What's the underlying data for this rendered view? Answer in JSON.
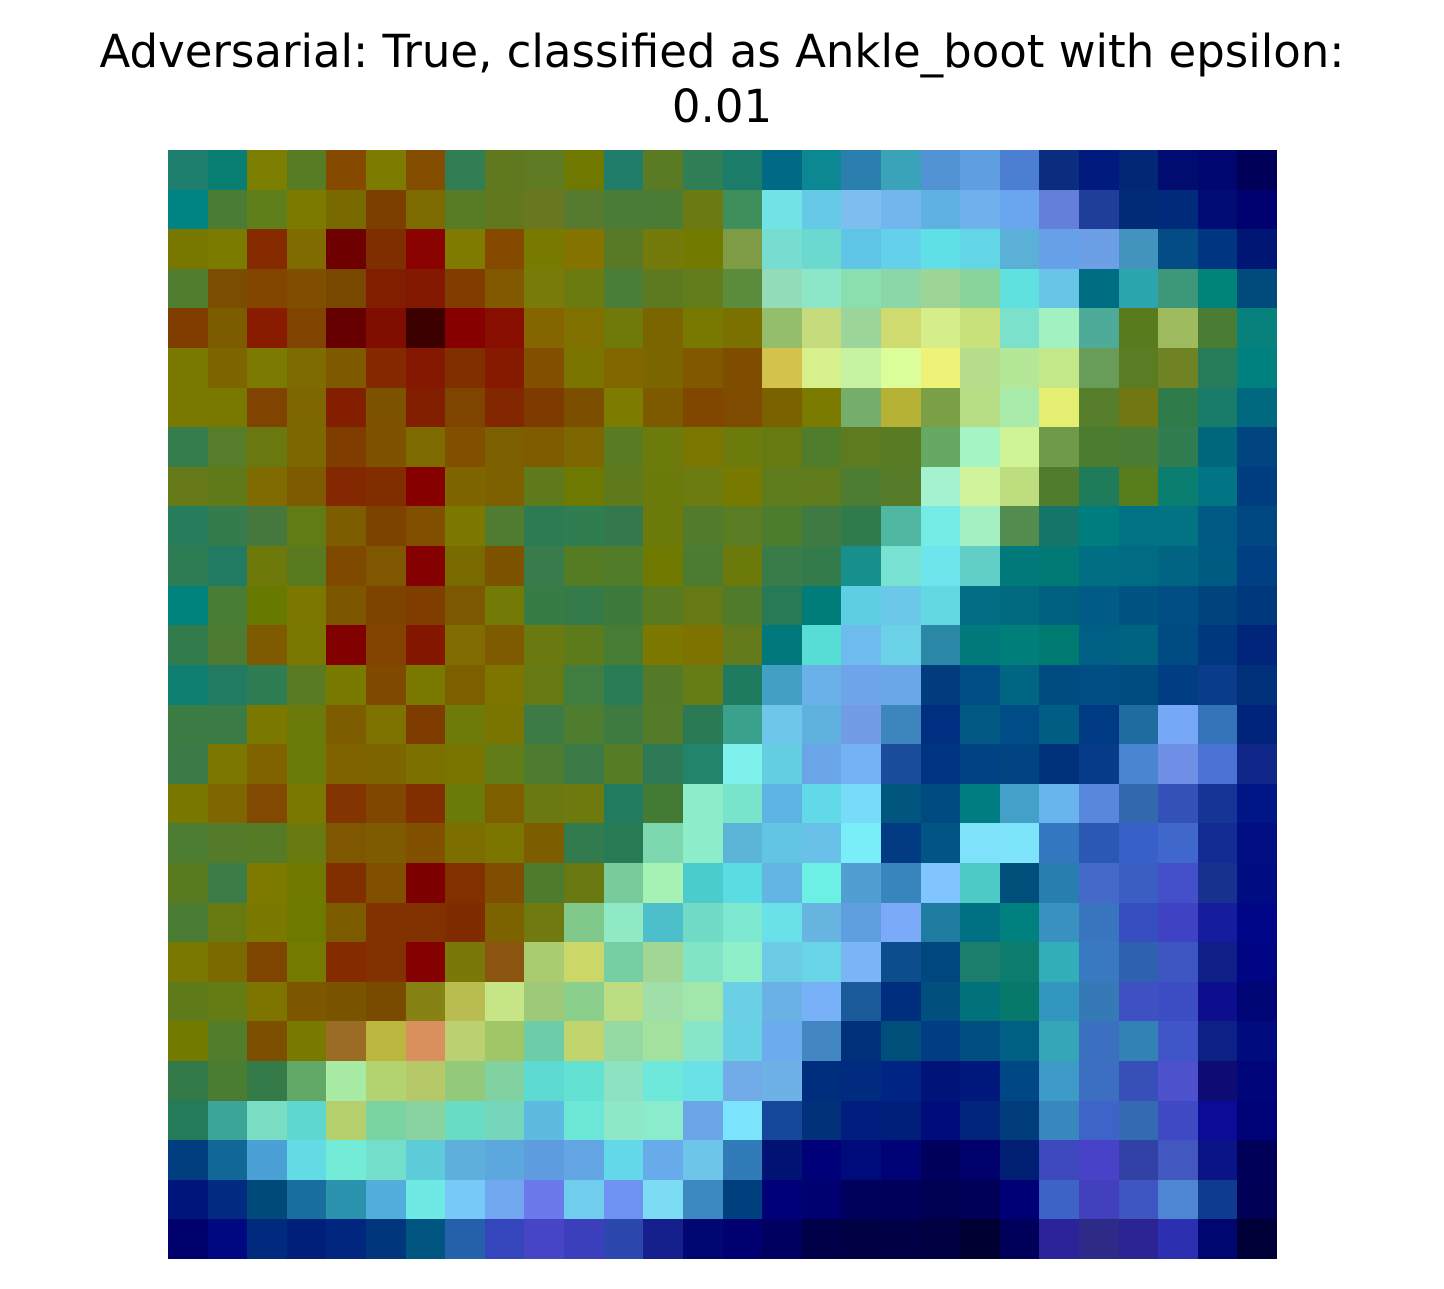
{
  "title": {
    "line1": "Adversarial: True, classified as Ankle_boot with epsilon:",
    "line2": "0.01"
  },
  "heatmap": {
    "rows": 28,
    "cols": 28,
    "color_rows": [
      [
        "#1e7f6e",
        "#087f72",
        "#7b7e00",
        "#577c24",
        "#854a00",
        "#7d7c00",
        "#854d00",
        "#327e54",
        "#61791e",
        "#5e7a22",
        "#6f7900",
        "#207d69",
        "#5a7b24",
        "#2f7e56",
        "#1c7c6a",
        "#006985",
        "#0b8891",
        "#2b7fae",
        "#3aa3b9",
        "#5193d3",
        "#609ee2",
        "#4c7fd2",
        "#0a2d7f",
        "#001b7d",
        "#012776",
        "#000c6f",
        "#000870",
        "#000058"
      ],
      [
        "#008483",
        "#4a7d33",
        "#5e7f19",
        "#7d7a00",
        "#796a00",
        "#7c3f00",
        "#7b6b00",
        "#587b26",
        "#61781e",
        "#687720",
        "#557a30",
        "#4a7c38",
        "#4b7c35",
        "#6d7a14",
        "#3e8f5c",
        "#72e3e4",
        "#66cae6",
        "#7dbdef",
        "#72b6ed",
        "#5eb1e1",
        "#6fb0ed",
        "#6aa5f0",
        "#637fda",
        "#1e3e99",
        "#002c77",
        "#002a7a",
        "#010b74",
        "#000070"
      ],
      [
        "#787700",
        "#7b7b00",
        "#862b00",
        "#7f6b00",
        "#6e0100",
        "#7f2e00",
        "#8a0200",
        "#7e7b00",
        "#864900",
        "#797b00",
        "#857400",
        "#5a7927",
        "#757b0a",
        "#727a00",
        "#7e9c45",
        "#76ddd0",
        "#6cd9d0",
        "#5ec5e7",
        "#64d0ec",
        "#5fe0e7",
        "#63d6e6",
        "#5ab0d6",
        "#66a0e8",
        "#6c9fe6",
        "#4393bf",
        "#034c85",
        "#003582",
        "#001675"
      ],
      [
        "#4f7e30",
        "#7a4d00",
        "#834600",
        "#7f4e00",
        "#784700",
        "#811d00",
        "#821900",
        "#823c00",
        "#815900",
        "#787b09",
        "#6c7b10",
        "#497d38",
        "#5e7a21",
        "#627d1b",
        "#5a8c3b",
        "#92dcb8",
        "#8ee6c9",
        "#89dfb0",
        "#8cd7a7",
        "#9ed495",
        "#89d499",
        "#61e0e0",
        "#68c5e7",
        "#006e82",
        "#2ba6ae",
        "#3d9779",
        "#018379",
        "#004a7c"
      ],
      [
        "#803d00",
        "#7d5c00",
        "#881b00",
        "#814300",
        "#660000",
        "#800e00",
        "#3d0000",
        "#860000",
        "#880e00",
        "#846500",
        "#807000",
        "#707a0b",
        "#7b6500",
        "#787900",
        "#7b7100",
        "#94be6c",
        "#c5db7c",
        "#9bd599",
        "#cfdb6e",
        "#d6ed8b",
        "#c9e17b",
        "#7ce1cb",
        "#a1f2c0",
        "#4eab99",
        "#5a7b1d",
        "#9fbb60",
        "#4b7c33",
        "#06817c"
      ],
      [
        "#7a7900",
        "#7f6500",
        "#7c7a00",
        "#7f6c00",
        "#7f5900",
        "#852a00",
        "#841800",
        "#822f00",
        "#861a00",
        "#825000",
        "#7b7500",
        "#826700",
        "#7b6600",
        "#805800",
        "#7e4d00",
        "#d3c24c",
        "#d8f08b",
        "#c6f3a2",
        "#dbfe9a",
        "#eef276",
        "#b5dd8a",
        "#b4e798",
        "#c3e88a",
        "#689c58",
        "#5a7c22",
        "#6f8324",
        "#277c59",
        "#00807e"
      ],
      [
        "#797900",
        "#797800",
        "#814400",
        "#7e6700",
        "#831e00",
        "#7e5300",
        "#821e00",
        "#7e4400",
        "#832700",
        "#7e3b00",
        "#7c4e00",
        "#7d7b00",
        "#7d5900",
        "#814600",
        "#7e4b00",
        "#7a6200",
        "#7b7b00",
        "#74ad6c",
        "#b5b236",
        "#7b9f44",
        "#b7dd84",
        "#a8ebaa",
        "#e4ee71",
        "#577e2b",
        "#717811",
        "#307b4a",
        "#197c6a",
        "#00687f"
      ],
      [
        "#357d4c",
        "#567d29",
        "#6b7810",
        "#7c6700",
        "#7f3d00",
        "#7f5200",
        "#7d6b00",
        "#804f00",
        "#7c5f00",
        "#7f5c00",
        "#7e6700",
        "#5b7b23",
        "#6c7b0b",
        "#7b7700",
        "#6d7b0d",
        "#657b12",
        "#507d2c",
        "#5e7b20",
        "#597b23",
        "#66a963",
        "#a5f4c4",
        "#cff397",
        "#6e9a4a",
        "#4b7c30",
        "#4a7c33",
        "#2f7d50",
        "#00677d",
        "#004580"
      ],
      [
        "#657918",
        "#607919",
        "#7f6b00",
        "#7e5b00",
        "#832800",
        "#812d00",
        "#860000",
        "#7f6500",
        "#7d6000",
        "#5e7a1d",
        "#6d7900",
        "#5e7a1c",
        "#6b7a0b",
        "#6d7c10",
        "#797a00",
        "#5e7c1c",
        "#5f7b1c",
        "#4c7d33",
        "#567b29",
        "#a4f2cf",
        "#d0f39b",
        "#bedd7f",
        "#4f7c2d",
        "#1e7c5a",
        "#577d1c",
        "#0a7e70",
        "#017583",
        "#003c80"
      ],
      [
        "#277c5b",
        "#357b4c",
        "#46783d",
        "#627c15",
        "#7e5c00",
        "#7e4200",
        "#805000",
        "#7c7800",
        "#4f7c31",
        "#2c7b53",
        "#307d52",
        "#35784d",
        "#6c7a0c",
        "#527c2c",
        "#5a7c22",
        "#4c7c2e",
        "#3e7a41",
        "#2f7b4b",
        "#50b8a2",
        "#75ebe5",
        "#a5f0c2",
        "#538c4f",
        "#157569",
        "#007d7e",
        "#017283",
        "#017383",
        "#005a83",
        "#004882"
      ],
      [
        "#2e7c53",
        "#217a62",
        "#6d7a0b",
        "#597a1f",
        "#7f4a00",
        "#7f5700",
        "#850000",
        "#7a6b00",
        "#7e5300",
        "#397b4a",
        "#567c23",
        "#517c2a",
        "#717a00",
        "#4c7b32",
        "#6b7a0b",
        "#397c4a",
        "#337b4b",
        "#17908d",
        "#79e2d2",
        "#6ee5ec",
        "#61cfc6",
        "#007a7a",
        "#017a75",
        "#006e83",
        "#016b83",
        "#006482",
        "#005b82",
        "#003f83"
      ],
      [
        "#00837d",
        "#487d35",
        "#687900",
        "#7c7700",
        "#7d5600",
        "#7f4300",
        "#7f3e00",
        "#7c5800",
        "#737b06",
        "#377b45",
        "#347b49",
        "#3e7a3e",
        "#587b21",
        "#657a14",
        "#507b2b",
        "#287a56",
        "#007d79",
        "#5ecee2",
        "#6cc8e8",
        "#63d7e2",
        "#036d85",
        "#016a81",
        "#00617f",
        "#005b86",
        "#005481",
        "#004e84",
        "#00447e",
        "#00387e"
      ],
      [
        "#327b4d",
        "#4d7b31",
        "#7e5a00",
        "#7b7800",
        "#800000",
        "#824300",
        "#841700",
        "#806c00",
        "#7e5a00",
        "#6b7a10",
        "#5e7b1b",
        "#477c35",
        "#7d7900",
        "#7e7200",
        "#627a19",
        "#01787b",
        "#57dcd6",
        "#6ebcee",
        "#6ad1e6",
        "#2a88a6",
        "#017a7c",
        "#007e7a",
        "#007b72",
        "#005f84",
        "#006380",
        "#004b81",
        "#00387f",
        "#00257a"
      ],
      [
        "#0f7f71",
        "#237a62",
        "#2f7d53",
        "#5a7b22",
        "#797a00",
        "#7f4900",
        "#797800",
        "#7d5f00",
        "#7e7400",
        "#657a13",
        "#3f7d40",
        "#287c56",
        "#557a27",
        "#667c15",
        "#1e7b5f",
        "#41a0c3",
        "#6ab1ea",
        "#6ea5ea",
        "#6aa7e8",
        "#013c7e",
        "#004c84",
        "#006682",
        "#004b80",
        "#004e84",
        "#004c80",
        "#003d82",
        "#0b3c8b",
        "#00307a"
      ],
      [
        "#3b7c45",
        "#3b7b46",
        "#7b7900",
        "#6c7a0b",
        "#7e5d00",
        "#7e7200",
        "#7f3c00",
        "#6e7b08",
        "#7a7500",
        "#3c7b46",
        "#4e7d30",
        "#3d7b41",
        "#537b2a",
        "#2a7a56",
        "#3aa18d",
        "#6ec6ea",
        "#5fb2dd",
        "#739ce6",
        "#3c86bd",
        "#002f81",
        "#005883",
        "#004c86",
        "#005d84",
        "#003a84",
        "#1e6ca0",
        "#77a8f8",
        "#3573b8",
        "#00237b"
      ],
      [
        "#3c7b47",
        "#7b7700",
        "#816400",
        "#6c790b",
        "#7e6300",
        "#7d6500",
        "#7c7000",
        "#7a7500",
        "#627c17",
        "#4d7c31",
        "#3a7b48",
        "#567c25",
        "#2e7a56",
        "#23846c",
        "#7ff2ed",
        "#63cde2",
        "#69a5e7",
        "#75b1f5",
        "#1b4c9b",
        "#003382",
        "#004385",
        "#004582",
        "#00317c",
        "#073c8a",
        "#4985d1",
        "#6f8fe7",
        "#4b72d5",
        "#0f2587"
      ],
      [
        "#7a7700",
        "#7e6600",
        "#824a00",
        "#7b7800",
        "#823500",
        "#814600",
        "#822e00",
        "#6c7a0a",
        "#7f5e00",
        "#6b7a10",
        "#6e790e",
        "#227b5e",
        "#437b35",
        "#8ceec9",
        "#79e4cc",
        "#5db4e3",
        "#62d9e6",
        "#78dcf9",
        "#015680",
        "#004a82",
        "#007c83",
        "#43a0c8",
        "#69b4ed",
        "#5887db",
        "#3268ae",
        "#3450b9",
        "#143596",
        "#001686"
      ],
      [
        "#4d7d32",
        "#537b2a",
        "#557b27",
        "#697a10",
        "#7e5700",
        "#7e5b00",
        "#825100",
        "#7d6e00",
        "#7b7600",
        "#7c5e00",
        "#327b4e",
        "#267b55",
        "#7dd8b0",
        "#8ceec8",
        "#5cb5d6",
        "#62c5e3",
        "#69c0e8",
        "#79edf8",
        "#023b83",
        "#005584",
        "#7fe2fb",
        "#7de4fa",
        "#3478c1",
        "#2a58b2",
        "#3860c9",
        "#4067cc",
        "#142b96",
        "#000e82"
      ],
      [
        "#597a1f",
        "#3b7c47",
        "#7e7a00",
        "#707900",
        "#812e00",
        "#804f00",
        "#7c0000",
        "#823000",
        "#804e00",
        "#4e7c2f",
        "#697810",
        "#7acb9c",
        "#a5f2b4",
        "#4ccbcd",
        "#5bdbe2",
        "#63b5e3",
        "#6bf0e3",
        "#519fd0",
        "#3884bc",
        "#81c5fe",
        "#4ecac6",
        "#004e7a",
        "#287eae",
        "#4469c9",
        "#3a5ec4",
        "#4350c9",
        "#17318e",
        "#000d82"
      ],
      [
        "#4b7c33",
        "#677a12",
        "#7b7900",
        "#6e7900",
        "#7d5c00",
        "#813200",
        "#813000",
        "#802b00",
        "#7d6200",
        "#707a11",
        "#80c98a",
        "#8fe9c4",
        "#4dbfcb",
        "#71dbc8",
        "#7ee8d1",
        "#6ae1e8",
        "#68b5e2",
        "#5f9fe0",
        "#7baaf9",
        "#1e7ca0",
        "#007083",
        "#008180",
        "#3991bf",
        "#3a76bf",
        "#364ec0",
        "#4042c4",
        "#161c9e",
        "#000688"
      ],
      [
        "#7a7800",
        "#7b6a00",
        "#7d4500",
        "#757a00",
        "#842b00",
        "#823100",
        "#850000",
        "#7a7807",
        "#8c5411",
        "#aacb70",
        "#cbd769",
        "#76cfa3",
        "#a2d695",
        "#81e4c7",
        "#8fefc9",
        "#6ccbe5",
        "#69d5e6",
        "#7ab6f5",
        "#0c4d8b",
        "#00477f",
        "#1c7e6c",
        "#0b7c6e",
        "#31aeb8",
        "#3879c1",
        "#2f61b1",
        "#3e56c2",
        "#0e2087",
        "#000584"
      ],
      [
        "#5f7a19",
        "#657b13",
        "#7e7400",
        "#7c5700",
        "#7b5400",
        "#794b00",
        "#868213",
        "#b9bc51",
        "#c6e587",
        "#9ec979",
        "#8bcf8c",
        "#bcdd81",
        "#a0dfa7",
        "#a1e6ab",
        "#6bd0e6",
        "#6ab2e6",
        "#79b1f8",
        "#1c5b99",
        "#002e7e",
        "#004f7c",
        "#01717b",
        "#07796b",
        "#3396be",
        "#3679b7",
        "#3f51c2",
        "#3d4ec4",
        "#0c0e8d",
        "#000576"
      ],
      [
        "#737a00",
        "#527d2b",
        "#7c5000",
        "#7b7a00",
        "#9b6c26",
        "#bab63e",
        "#d9905c",
        "#bad071",
        "#a1c668",
        "#6dcda8",
        "#c1d46e",
        "#96daa3",
        "#a3e19e",
        "#87e5ca",
        "#68d1e4",
        "#6dabef",
        "#4287c1",
        "#002f7c",
        "#004f7b",
        "#003d84",
        "#004e7f",
        "#005f84",
        "#34a6b6",
        "#3b70c0",
        "#3382b5",
        "#3f55c8",
        "#0c2086",
        "#000b7e"
      ],
      [
        "#347a48",
        "#4a7d32",
        "#357b4a",
        "#62a968",
        "#a8eba5",
        "#b2d370",
        "#b5c969",
        "#93c97a",
        "#82d1a0",
        "#5ddbd2",
        "#63e2d4",
        "#8ce2c1",
        "#6fe8dc",
        "#6ae0e7",
        "#71abe8",
        "#6eb1e6",
        "#002e7e",
        "#002b7f",
        "#002483",
        "#001378",
        "#00187b",
        "#004885",
        "#3e9bc7",
        "#3c6ec2",
        "#384fba",
        "#4d51cb",
        "#0e0b74",
        "#00067a"
      ],
      [
        "#247b5a",
        "#3ba59a",
        "#79dcc3",
        "#5ed7ce",
        "#b4cf6b",
        "#7ad3a3",
        "#88d3a0",
        "#69dcc6",
        "#76d6bc",
        "#5dbbe2",
        "#6be6d7",
        "#8ee8c7",
        "#8aebcd",
        "#6ba6e8",
        "#7be3fb",
        "#16479a",
        "#003179",
        "#001c7d",
        "#001f7b",
        "#000b7c",
        "#00257b",
        "#003c7a",
        "#3987bf",
        "#3e64ca",
        "#336ab2",
        "#3e49c3",
        "#0b0b98",
        "#000277"
      ],
      [
        "#003e80",
        "#116796",
        "#4ba1d5",
        "#63dbe4",
        "#73ebd6",
        "#73dfcb",
        "#5ecbd9",
        "#5eafdb",
        "#5ba7de",
        "#5e9ce0",
        "#64a5e4",
        "#63d8e8",
        "#68abea",
        "#6dc5ea",
        "#317bb8",
        "#001274",
        "#000178",
        "#000b7b",
        "#000375",
        "#00005c",
        "#00006d",
        "#001f73",
        "#3c48bb",
        "#4742c7",
        "#3241a6",
        "#4258c0",
        "#0b1486",
        "#000059"
      ],
      [
        "#00157c",
        "#002b81",
        "#004a7a",
        "#186f9e",
        "#2c93ae",
        "#54aedc",
        "#6fe9e4",
        "#77c9f8",
        "#70a7ee",
        "#6b79ea",
        "#70cdeb",
        "#6f93f0",
        "#7bdcf3",
        "#3c88c0",
        "#003f7e",
        "#000078",
        "#000070",
        "#00005d",
        "#00005c",
        "#000053",
        "#000058",
        "#000076",
        "#3c63c5",
        "#4240bd",
        "#3f55c2",
        "#4e86d3",
        "#0f3b8f",
        "#000056"
      ],
      [
        "#00006c",
        "#000881",
        "#002a7d",
        "#001f7b",
        "#002680",
        "#00367b",
        "#005680",
        "#2561ab",
        "#3545bc",
        "#4745c5",
        "#3b3fbc",
        "#2c48af",
        "#16208c",
        "#000773",
        "#000070",
        "#000061",
        "#000048",
        "#000045",
        "#000047",
        "#000043",
        "#000033",
        "#00005a",
        "#2c229a",
        "#2d2b87",
        "#2c2494",
        "#2c30b0",
        "#000670",
        "#000038"
      ]
    ]
  }
}
